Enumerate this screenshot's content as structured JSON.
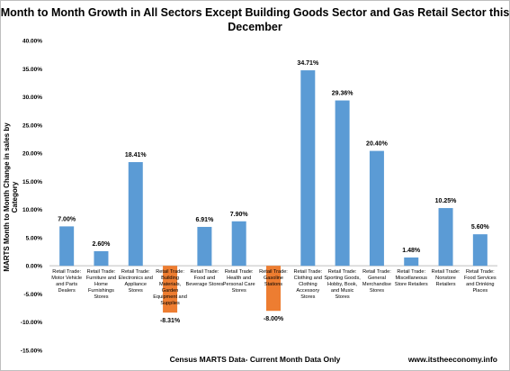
{
  "chart_data": {
    "type": "bar",
    "title": "Month to Month Growth in All Sectors Except Building Goods Sector and Gas Retail Sector this December",
    "ylabel": "MARTS Month to Month Change in sales by Category",
    "xlabel": "Census MARTS Data- Current Month Data Only",
    "credit": "www.itstheeconomy.info",
    "ylim": [
      -15,
      40
    ],
    "yticks": [
      "-15.00%",
      "-10.00%",
      "-5.00%",
      "0.00%",
      "5.00%",
      "10.00%",
      "15.00%",
      "20.00%",
      "25.00%",
      "30.00%",
      "35.00%",
      "40.00%"
    ],
    "grid": false,
    "colors": {
      "positive": "#5b9bd5",
      "negative": "#ed7d31"
    },
    "categories": [
      [
        "Retail Trade:",
        "Motor Vehicle",
        "and Parts",
        "Dealers"
      ],
      [
        "Retail Trade:",
        "Furniture and",
        "Home",
        "Furnishings",
        "Stores"
      ],
      [
        "Retail Trade:",
        "Electronics and",
        "Appliance",
        "Stores"
      ],
      [
        "Retail Trade:",
        "Building",
        "Materials,",
        "Garden",
        "Equipment and",
        "Supplies"
      ],
      [
        "Retail Trade:",
        "Food and",
        "Beverage Stores"
      ],
      [
        "Retail Trade:",
        "Health and",
        "Personal Care",
        "Stores"
      ],
      [
        "Retail Trade:",
        "Gasoline",
        "Stations"
      ],
      [
        "Retail Trade:",
        "Clothing and",
        "Clothing",
        "Accessory",
        "Stores"
      ],
      [
        "Retail Trade:",
        "Sporting Goods,",
        "Hobby, Book,",
        "and Music",
        "Stores"
      ],
      [
        "Retail Trade:",
        "General",
        "Merchandise",
        "Stores"
      ],
      [
        "Retail Trade:",
        "Miscellaneous",
        "Store Retailers"
      ],
      [
        "Retail Trade:",
        "Nonstore",
        "Retailers"
      ],
      [
        "Retail Trade:",
        "Food Services",
        "and Drinking",
        "Places"
      ]
    ],
    "values": [
      7.0,
      2.6,
      18.41,
      -8.31,
      6.91,
      7.9,
      -8.0,
      34.71,
      29.36,
      20.4,
      1.48,
      10.25,
      5.6
    ],
    "data_labels": [
      "7.00%",
      "2.60%",
      "18.41%",
      "-8.31%",
      "6.91%",
      "7.90%",
      "-8.00%",
      "34.71%",
      "29.36%",
      "20.40%",
      "1.48%",
      "10.25%",
      "5.60%"
    ]
  }
}
